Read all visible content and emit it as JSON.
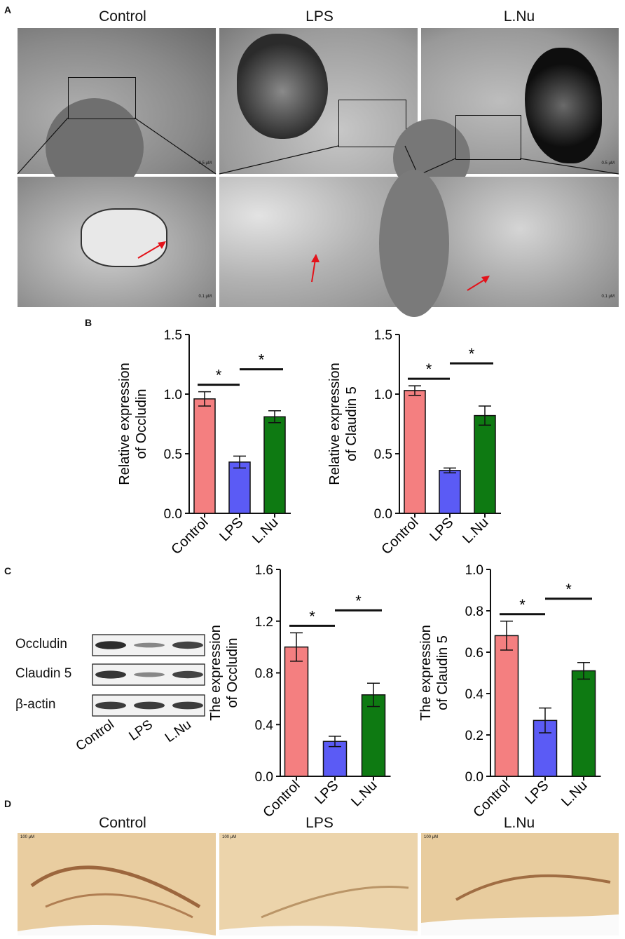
{
  "panels": {
    "a": {
      "letter": "A",
      "groups": [
        "Control",
        "LPS",
        "L.Nu"
      ],
      "scale_top": "0.5 μM",
      "scale_bottom": "0.1 μM"
    },
    "b": {
      "letter": "B"
    },
    "c": {
      "letter": "C",
      "blot_rows": [
        "Occludin",
        "Claudin 5",
        "β-actin"
      ],
      "blot_lanes": [
        "Control",
        "LPS",
        "L.Nu"
      ],
      "blot_band_intensity": {
        "Occludin": [
          0.95,
          0.35,
          0.8
        ],
        "Claudin 5": [
          0.9,
          0.35,
          0.8
        ],
        "β-actin": [
          0.85,
          0.85,
          0.85
        ]
      }
    },
    "d": {
      "letter": "D",
      "groups": [
        "Control",
        "LPS",
        "L.Nu"
      ],
      "scale": "100 μM"
    }
  },
  "colors": {
    "control": "#f47f80",
    "lps": "#5b5bf5",
    "lnu": "#0e7a12",
    "ihc": "#e9cda0"
  },
  "chart_data": [
    {
      "id": "b1",
      "type": "bar",
      "categories": [
        "Control",
        "LPS",
        "L.Nu"
      ],
      "values": [
        0.96,
        0.43,
        0.81
      ],
      "errors": [
        0.06,
        0.05,
        0.05
      ],
      "ylabel": "Relative expression\nof Occludin",
      "ylim": [
        0,
        1.5
      ],
      "yticks": [
        "0.0",
        "0.5",
        "1.0",
        "1.5"
      ],
      "significance": [
        {
          "from": 0,
          "to": 1,
          "label": "*"
        },
        {
          "from": 1,
          "to": 2,
          "label": "*"
        }
      ]
    },
    {
      "id": "b2",
      "type": "bar",
      "categories": [
        "Control",
        "LPS",
        "L.Nu"
      ],
      "values": [
        1.03,
        0.36,
        0.82
      ],
      "errors": [
        0.04,
        0.02,
        0.08
      ],
      "ylabel": "Relative expression\nof Claudin 5",
      "ylim": [
        0,
        1.5
      ],
      "yticks": [
        "0.0",
        "0.5",
        "1.0",
        "1.5"
      ],
      "significance": [
        {
          "from": 0,
          "to": 1,
          "label": "*"
        },
        {
          "from": 1,
          "to": 2,
          "label": "*"
        }
      ]
    },
    {
      "id": "c1",
      "type": "bar",
      "categories": [
        "Control",
        "LPS",
        "L.Nu"
      ],
      "values": [
        1.0,
        0.27,
        0.63
      ],
      "errors": [
        0.11,
        0.04,
        0.09
      ],
      "ylabel": "The expression\nof Occludin",
      "ylim": [
        0,
        1.6
      ],
      "yticks": [
        "0.0",
        "0.4",
        "0.8",
        "1.2",
        "1.6"
      ],
      "significance": [
        {
          "from": 0,
          "to": 1,
          "label": "*"
        },
        {
          "from": 1,
          "to": 2,
          "label": "*"
        }
      ]
    },
    {
      "id": "c2",
      "type": "bar",
      "categories": [
        "Control",
        "LPS",
        "L.Nu"
      ],
      "values": [
        0.68,
        0.27,
        0.51
      ],
      "errors": [
        0.07,
        0.06,
        0.04
      ],
      "ylabel": "The expression\nof Claudin 5",
      "ylim": [
        0,
        1.0
      ],
      "yticks": [
        "0.0",
        "0.2",
        "0.4",
        "0.6",
        "0.8",
        "1.0"
      ],
      "significance": [
        {
          "from": 0,
          "to": 1,
          "label": "*"
        },
        {
          "from": 1,
          "to": 2,
          "label": "*"
        }
      ]
    }
  ]
}
